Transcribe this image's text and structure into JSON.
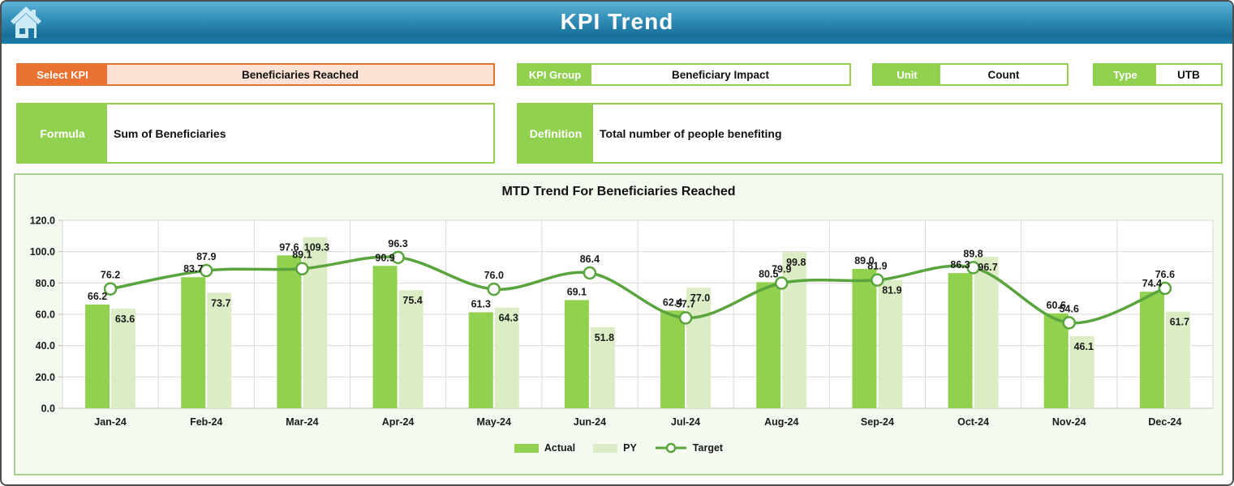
{
  "header": {
    "title": "KPI Trend",
    "home_icon": "home-icon"
  },
  "selectors": {
    "select_kpi": {
      "label": "Select KPI",
      "value": "Beneficiaries Reached"
    },
    "kpi_group": {
      "label": "KPI Group",
      "value": "Beneficiary Impact"
    },
    "unit": {
      "label": "Unit",
      "value": "Count"
    },
    "type": {
      "label": "Type",
      "value": "UTB"
    }
  },
  "formula": {
    "label": "Formula",
    "value": "Sum of Beneficiaries"
  },
  "definition": {
    "label": "Definition",
    "value": "Total number of people benefiting"
  },
  "colors": {
    "header_blue_top": "#5CB3D8",
    "header_blue_bottom": "#186F99",
    "green_accent": "#92D050",
    "orange_accent": "#E97132",
    "orange_field": "#FBE2D5",
    "chart_bg": "#F4FAEF",
    "chart_border": "#A9D18E",
    "gridline": "#D9D9D9",
    "axis_line": "#BFBFBF",
    "label_text": "#1A1A1A"
  },
  "chart_data": {
    "type": "bar",
    "title": "MTD Trend For Beneficiaries Reached",
    "categories": [
      "Jan-24",
      "Feb-24",
      "Mar-24",
      "Apr-24",
      "May-24",
      "Jun-24",
      "Jul-24",
      "Aug-24",
      "Sep-24",
      "Oct-24",
      "Nov-24",
      "Dec-24"
    ],
    "series": [
      {
        "name": "Actual",
        "type": "bar",
        "color": "#92D050",
        "values": [
          66.2,
          83.7,
          97.6,
          90.9,
          61.3,
          69.1,
          62.4,
          80.5,
          89.0,
          86.3,
          60.6,
          74.4
        ]
      },
      {
        "name": "PY",
        "type": "bar",
        "color": "#DCEDC6",
        "values": [
          63.6,
          73.7,
          109.3,
          75.4,
          64.3,
          51.8,
          77.0,
          99.8,
          81.9,
          96.7,
          46.1,
          61.7
        ]
      },
      {
        "name": "Target",
        "type": "line",
        "color": "#5AA43E",
        "values": [
          76.2,
          87.9,
          89.1,
          96.3,
          76.0,
          86.4,
          57.7,
          79.9,
          81.9,
          89.8,
          54.6,
          76.6
        ]
      }
    ],
    "xlabel": "",
    "ylabel": "",
    "ylim": [
      0,
      120
    ],
    "ytick_step": 20,
    "ytick_format_decimals": 1,
    "grid": true,
    "legend_position": "bottom"
  }
}
